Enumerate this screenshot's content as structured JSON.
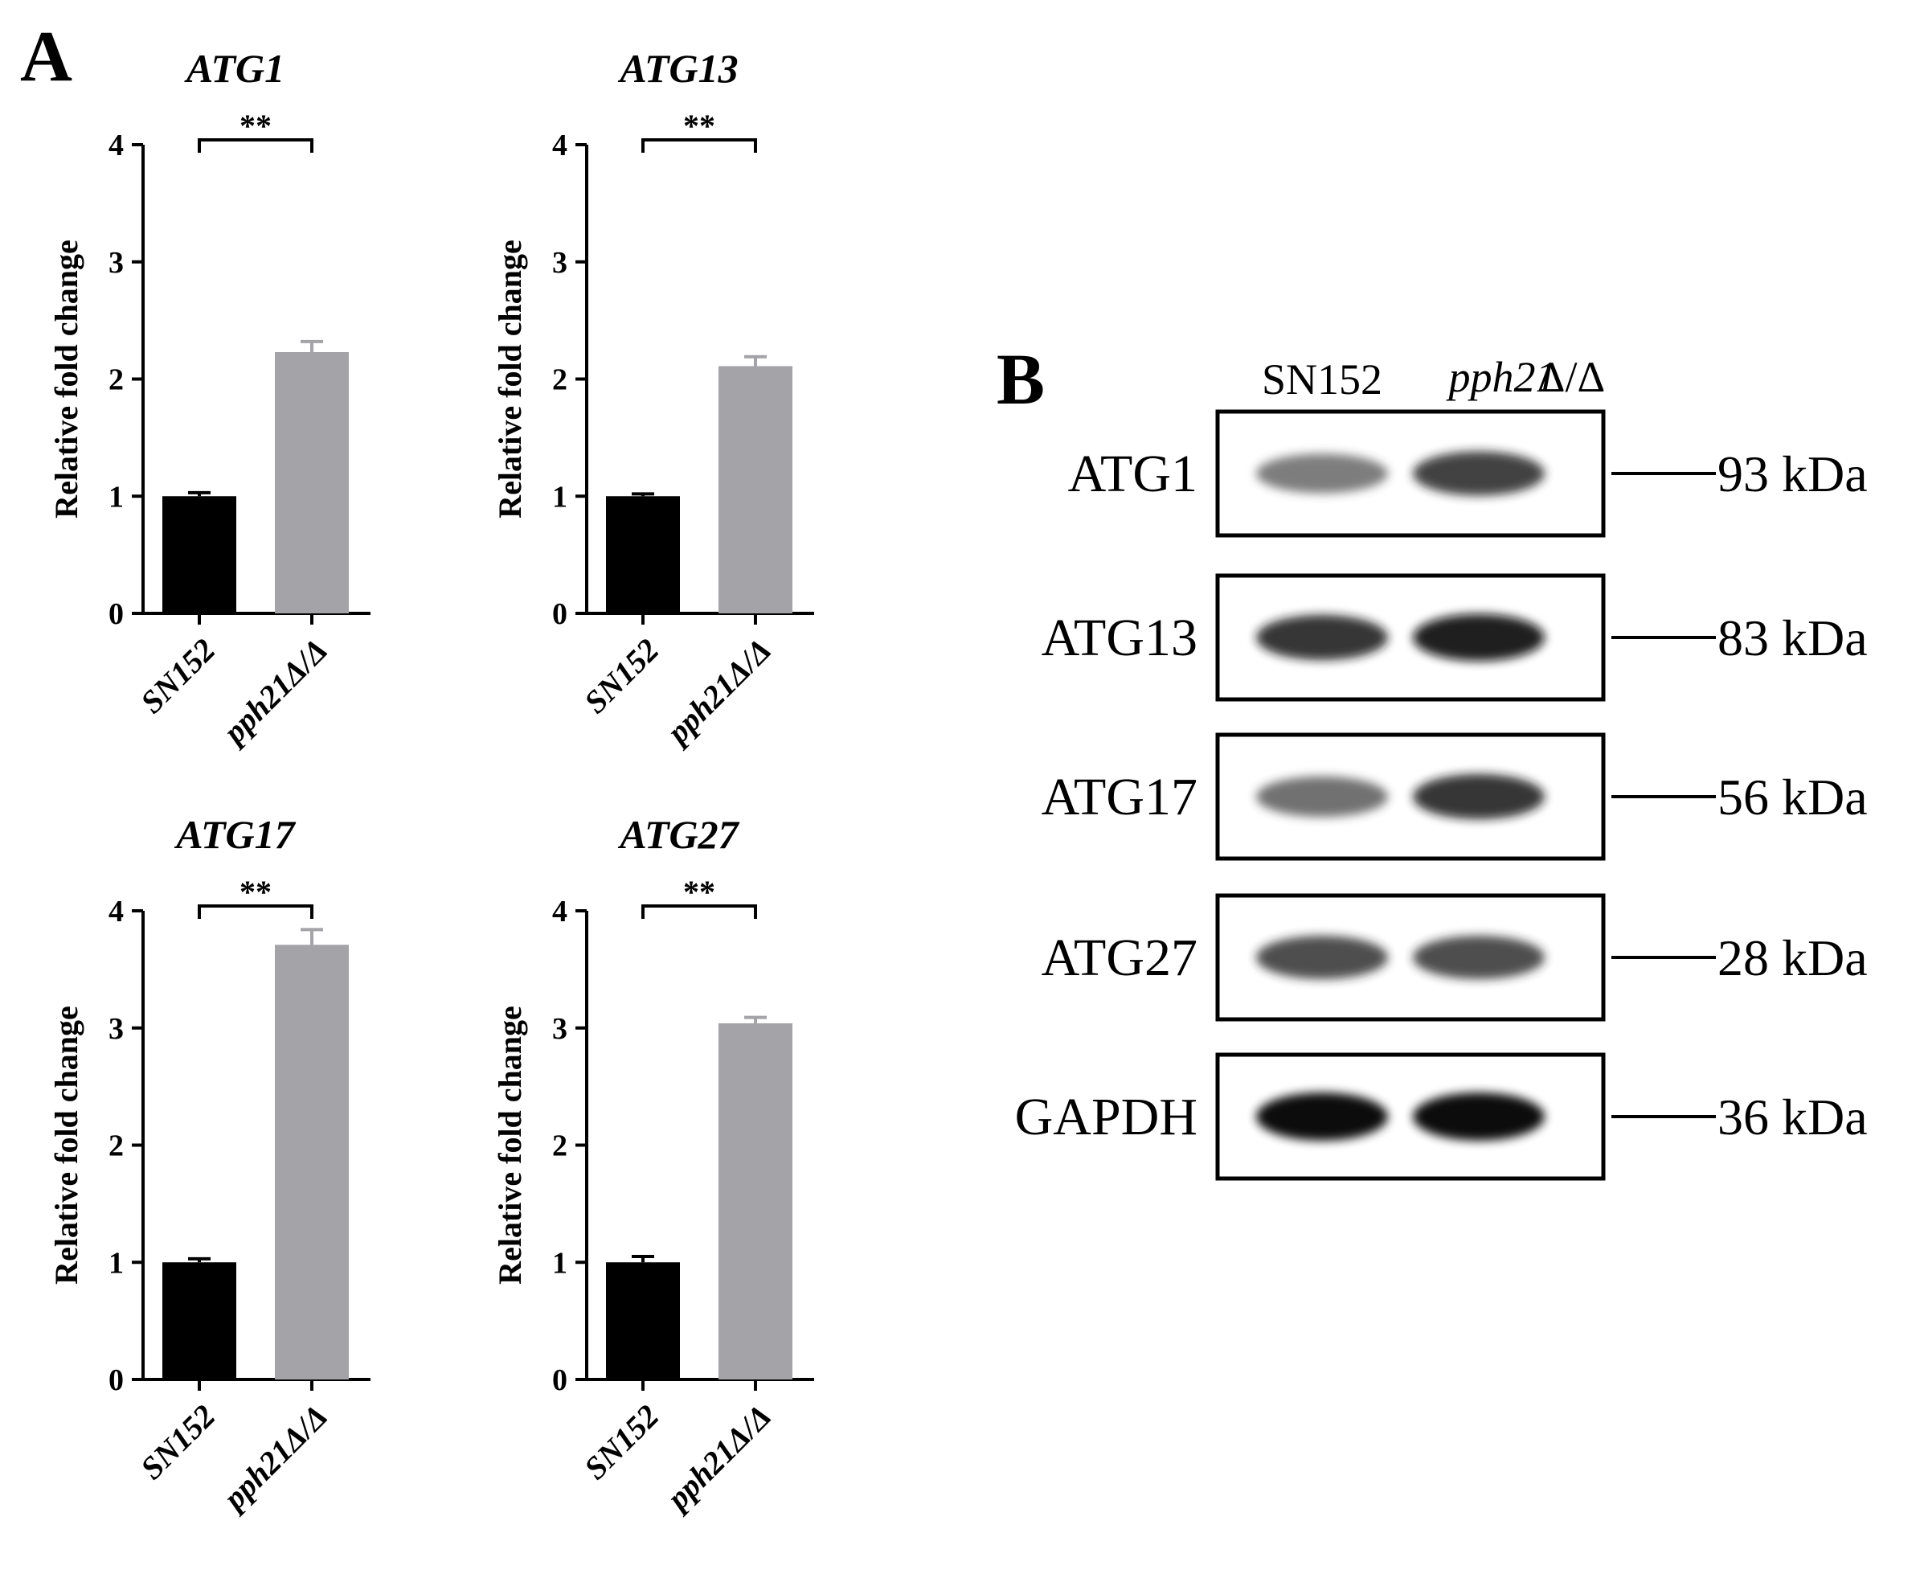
{
  "panels": {
    "a_label": "A",
    "b_label": "B"
  },
  "colors": {
    "control_bar": "#000000",
    "mutant_bar": "#a3a3a8",
    "axis": "#000000"
  },
  "chart_data": [
    {
      "type": "bar",
      "title": "ATG1",
      "ylabel": "Relative fold change",
      "categories": [
        "SN152",
        "pph21Δ/Δ"
      ],
      "values": [
        1.0,
        2.23
      ],
      "errors": [
        0.03,
        0.09
      ],
      "ylim": [
        0,
        4
      ],
      "yticks": [
        "0",
        "1",
        "2",
        "3",
        "4"
      ],
      "significance": "**"
    },
    {
      "type": "bar",
      "title": "ATG13",
      "ylabel": "Relative fold change",
      "categories": [
        "SN152",
        "pph21Δ/Δ"
      ],
      "values": [
        1.0,
        2.11
      ],
      "errors": [
        0.02,
        0.08
      ],
      "ylim": [
        0,
        4
      ],
      "yticks": [
        "0",
        "1",
        "2",
        "3",
        "4"
      ],
      "significance": "**"
    },
    {
      "type": "bar",
      "title": "ATG17",
      "ylabel": "Relative fold change",
      "categories": [
        "SN152",
        "pph21Δ/Δ"
      ],
      "values": [
        1.0,
        3.71
      ],
      "errors": [
        0.03,
        0.13
      ],
      "ylim": [
        0,
        4
      ],
      "yticks": [
        "0",
        "1",
        "2",
        "3",
        "4"
      ],
      "significance": "**"
    },
    {
      "type": "bar",
      "title": "ATG27",
      "ylabel": "Relative fold change",
      "categories": [
        "SN152",
        "pph21Δ/Δ"
      ],
      "values": [
        1.0,
        3.04
      ],
      "errors": [
        0.05,
        0.05
      ],
      "ylim": [
        0,
        4
      ],
      "yticks": [
        "0",
        "1",
        "2",
        "3",
        "4"
      ],
      "significance": "**"
    }
  ],
  "blot": {
    "lanes": [
      "SN152",
      "pph21",
      "Δ/Δ"
    ],
    "rows": [
      {
        "name": "ATG1",
        "marker": "93 kDa",
        "band_intensity": [
          0.55,
          0.8
        ]
      },
      {
        "name": "ATG13",
        "marker": "83 kDa",
        "band_intensity": [
          0.85,
          0.95
        ]
      },
      {
        "name": "ATG17",
        "marker": "56 kDa",
        "band_intensity": [
          0.6,
          0.85
        ]
      },
      {
        "name": "ATG27",
        "marker": "28 kDa",
        "band_intensity": [
          0.75,
          0.75
        ]
      },
      {
        "name": "GAPDH",
        "marker": "36 kDa",
        "band_intensity": [
          1.0,
          1.0
        ]
      }
    ]
  }
}
